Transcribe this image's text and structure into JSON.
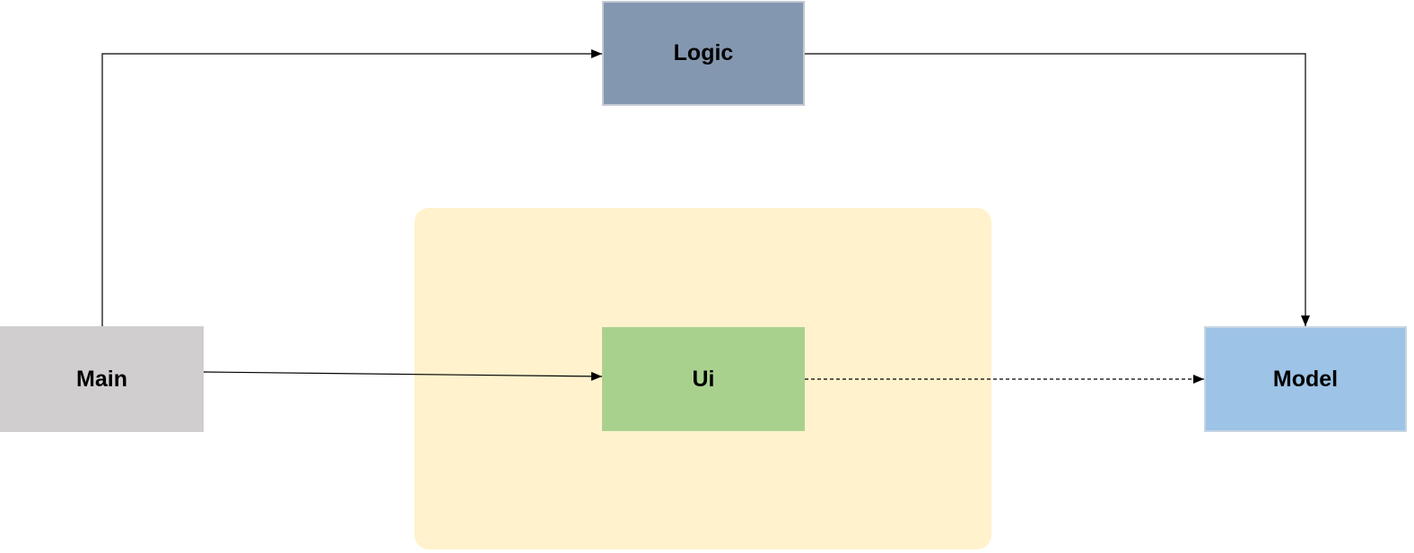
{
  "nodes": {
    "logic": {
      "label": "Logic",
      "fill": "#8497b0",
      "stroke": "#c0c8d2"
    },
    "main": {
      "label": "Main",
      "fill": "#d0cece",
      "stroke": "#d0cece"
    },
    "ui": {
      "label": "Ui",
      "fill": "#a9d18e",
      "stroke": "#a9d18e"
    },
    "model": {
      "label": "Model",
      "fill": "#9dc3e6",
      "stroke": "#c5d5e3"
    }
  },
  "group": {
    "fill": "#fff2cc"
  },
  "edges": [
    {
      "from": "main",
      "to": "logic",
      "style": "solid"
    },
    {
      "from": "logic",
      "to": "model",
      "style": "solid"
    },
    {
      "from": "main",
      "to": "ui",
      "style": "solid"
    },
    {
      "from": "ui",
      "to": "model",
      "style": "dashed"
    }
  ],
  "line_color": "#000000"
}
